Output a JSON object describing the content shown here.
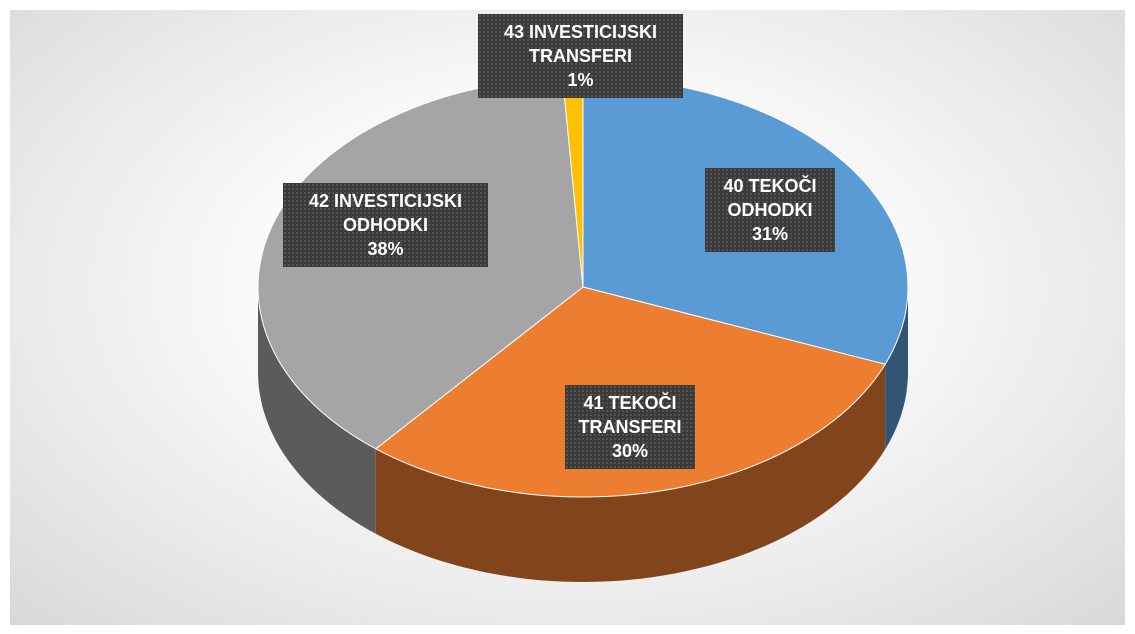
{
  "chart_data": {
    "type": "pie",
    "categories": [
      "40 TEKOČI ODHODKI",
      "41 TEKOČI TRANSFERI",
      "42 INVESTICIJSKI ODHODKI",
      "43 INVESTICIJSKI TRANSFERI"
    ],
    "values": [
      31,
      30,
      38,
      1
    ],
    "value_labels": [
      "31%",
      "30%",
      "38%",
      "1%"
    ],
    "colors": [
      "#5b9bd5",
      "#ed7d31",
      "#a5a5a5",
      "#ffc000"
    ]
  }
}
